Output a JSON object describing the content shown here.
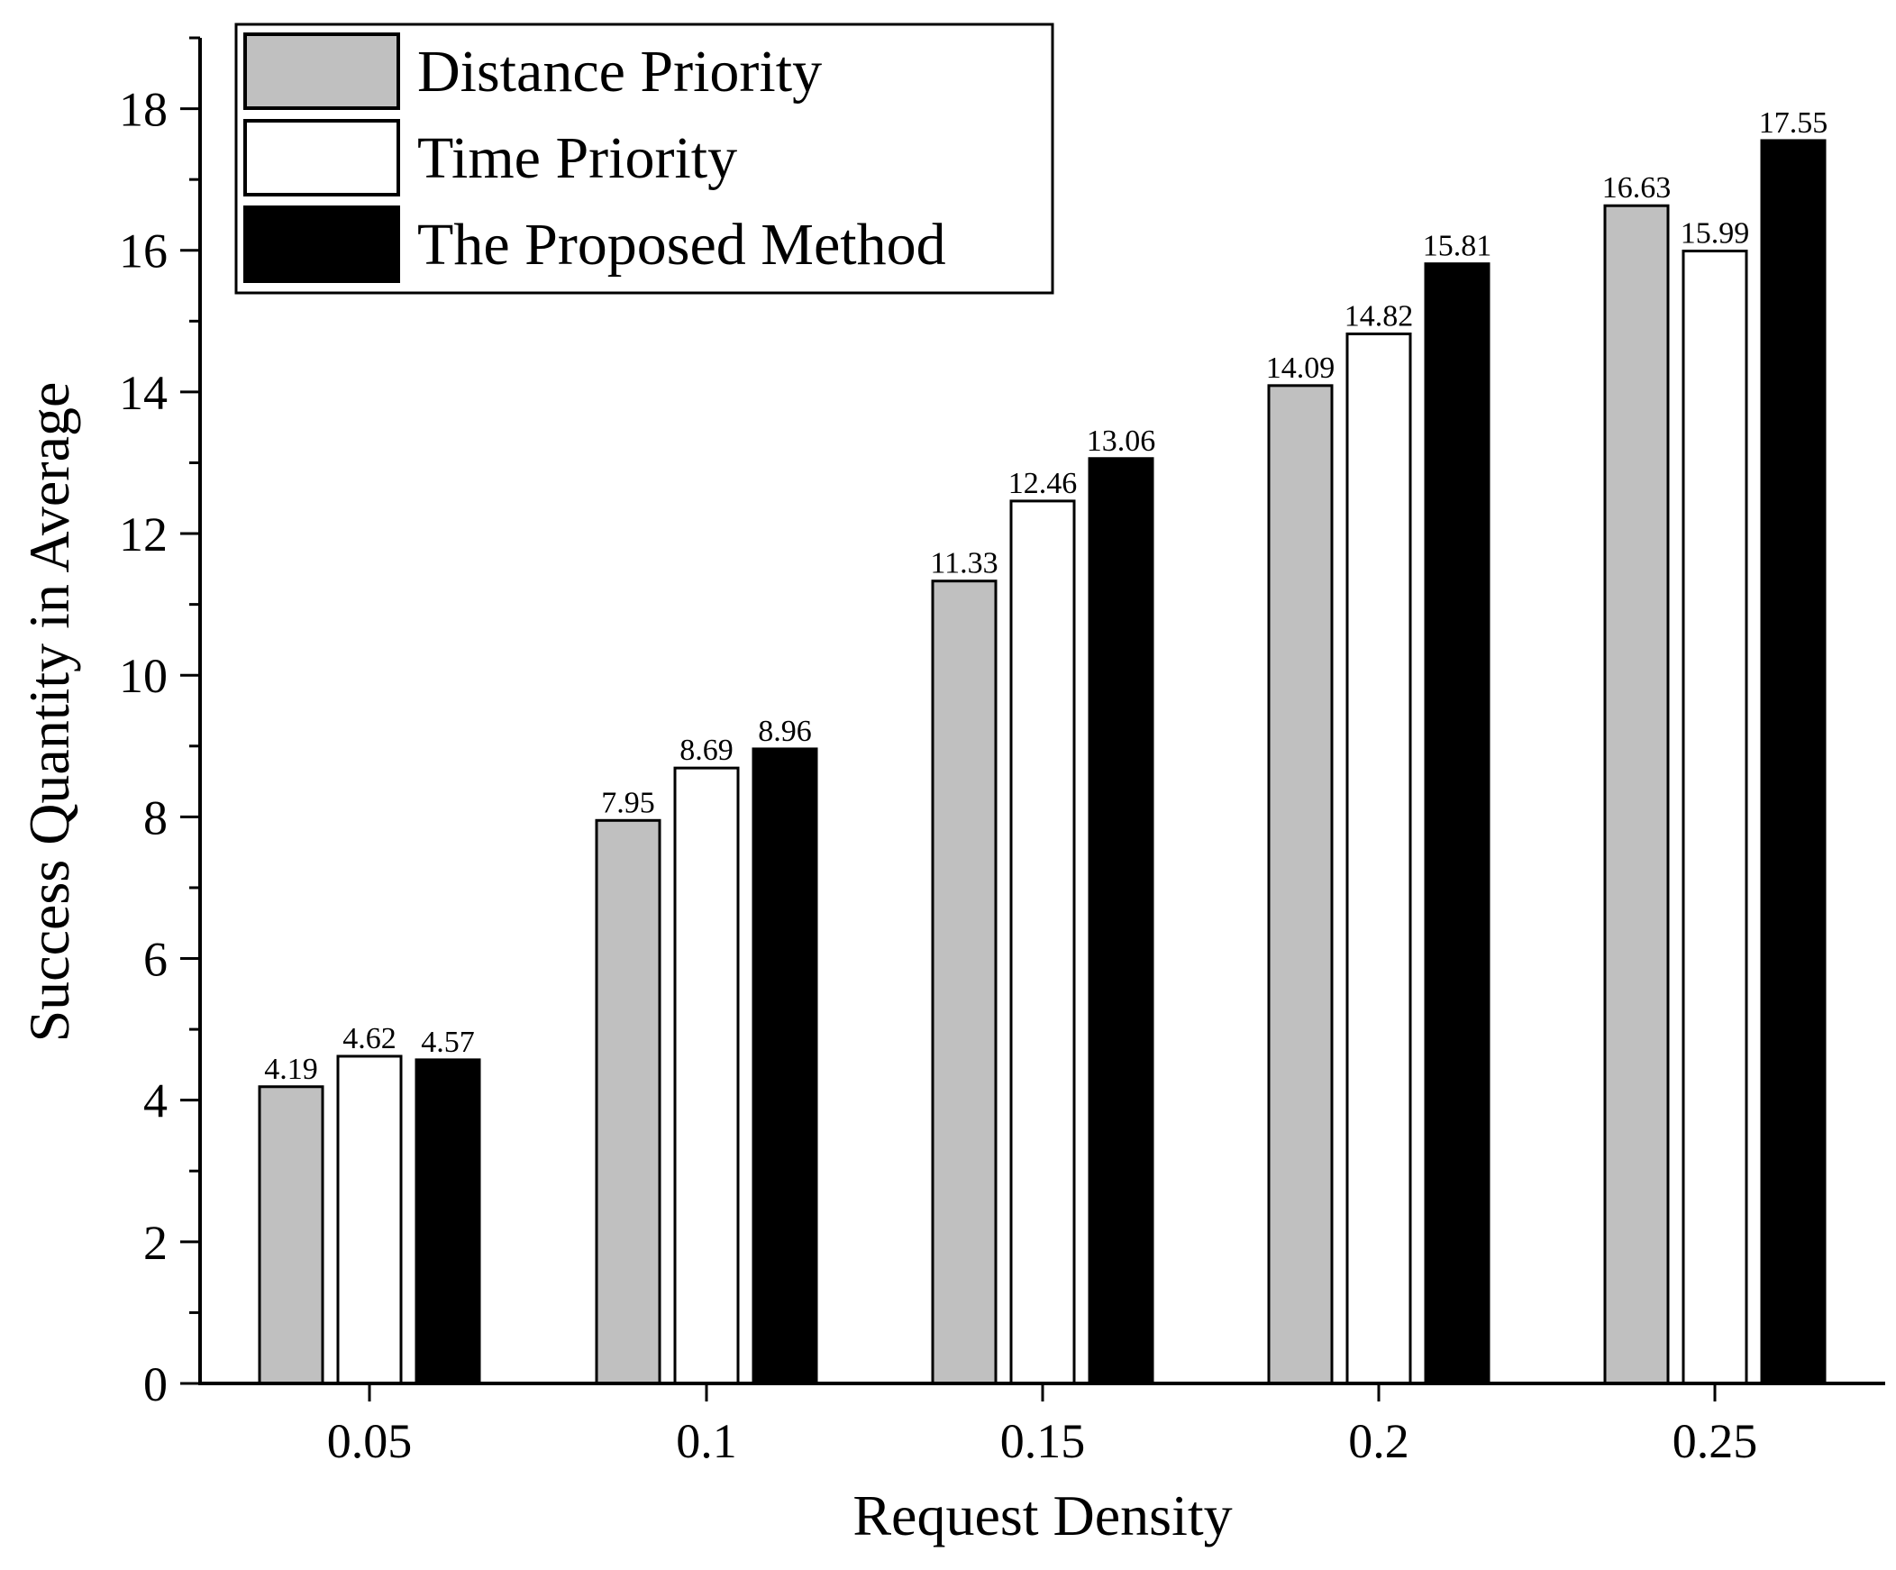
{
  "chart_data": {
    "type": "bar",
    "title": "",
    "xlabel": "Request Density",
    "ylabel": "Success Quantity in Average",
    "categories": [
      "0.05",
      "0.1",
      "0.15",
      "0.2",
      "0.25"
    ],
    "ylim": [
      0,
      19
    ],
    "yticks": [
      0,
      2,
      4,
      6,
      8,
      10,
      12,
      14,
      16,
      18
    ],
    "y_minor_step": 1,
    "grid": false,
    "legend_position": "top-left",
    "series": [
      {
        "name": "Distance Priority",
        "color": "#c0c0c0",
        "values": [
          4.19,
          7.95,
          11.33,
          14.09,
          16.63
        ],
        "labels": [
          "4.19",
          "7.95",
          "11.33",
          "14.09",
          "16.63"
        ]
      },
      {
        "name": "Time Priority",
        "color": "#ffffff",
        "values": [
          4.62,
          8.69,
          12.46,
          14.82,
          15.99
        ],
        "labels": [
          "4.62",
          "8.69",
          "12.46",
          "14.82",
          "15.99"
        ]
      },
      {
        "name": "The Proposed Method",
        "color": "#000000",
        "values": [
          4.57,
          8.96,
          13.06,
          15.81,
          17.55
        ],
        "labels": [
          "4.57",
          "8.96",
          "13.06",
          "15.81",
          "17.55"
        ]
      }
    ]
  }
}
